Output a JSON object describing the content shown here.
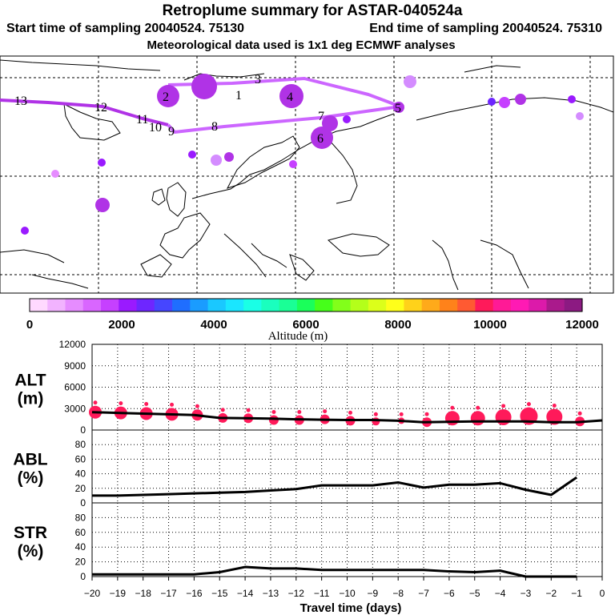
{
  "header": {
    "title": "Retroplume summary for ASTAR-040524a",
    "start": "Start time of sampling 20040524. 75130",
    "end": "End time of sampling 20040524. 75310",
    "met": "Meteorological data used is 1x1 deg ECMWF analyses"
  },
  "colorbar": {
    "label": "Altitude (m)",
    "ticks": [
      "0",
      "2000",
      "4000",
      "6000",
      "8000",
      "10000",
      "12000"
    ],
    "colors": [
      "#ffd9ff",
      "#f2b3ff",
      "#e68cff",
      "#d966ff",
      "#c640ff",
      "#9a1aff",
      "#6e26ff",
      "#4646ff",
      "#1f6eff",
      "#1a9cff",
      "#1ac8ff",
      "#1ae6ff",
      "#1affe6",
      "#1affbe",
      "#1aff96",
      "#1aff5a",
      "#46ff1a",
      "#82ff1a",
      "#b4ff1a",
      "#dcff1a",
      "#ffff1a",
      "#ffd21a",
      "#ffaa1a",
      "#ff821a",
      "#ff5a32",
      "#ff1a5a",
      "#ff1a96",
      "#ff1ab4",
      "#dc1aaa",
      "#aa1a8c",
      "#8c1a82"
    ]
  },
  "map": {
    "plume_labels": [
      "13",
      "12",
      "11",
      "10",
      "9",
      "8",
      "7",
      "6",
      "5",
      "4",
      "3",
      "2",
      "1"
    ]
  },
  "chart_data": [
    {
      "type": "line",
      "name": "ALT",
      "ylabel_line1": "ALT",
      "ylabel_line2": "(m)",
      "ylim": [
        0,
        12000
      ],
      "yticks": [
        "0",
        "3000",
        "6000",
        "9000",
        "12000"
      ],
      "x": [
        -20,
        -19,
        -18,
        -17,
        -16,
        -15,
        -14,
        -13,
        -12,
        -11,
        -10,
        -9,
        -8,
        -7,
        -6,
        -5,
        -4,
        -3,
        -2,
        -1,
        0
      ],
      "values": [
        2500,
        2400,
        2300,
        2200,
        2100,
        1700,
        1650,
        1600,
        1500,
        1450,
        1400,
        1400,
        1300,
        1100,
        1150,
        1200,
        1200,
        1200,
        1100,
        1100,
        1350
      ],
      "dots": [
        {
          "x": -20,
          "y": 2500,
          "r": 8
        },
        {
          "x": -19,
          "y": 2400,
          "r": 8
        },
        {
          "x": -18,
          "y": 2300,
          "r": 8
        },
        {
          "x": -17,
          "y": 2200,
          "r": 8
        },
        {
          "x": -16,
          "y": 2100,
          "r": 7
        },
        {
          "x": -15,
          "y": 1700,
          "r": 6
        },
        {
          "x": -14,
          "y": 1650,
          "r": 6
        },
        {
          "x": -13,
          "y": 1400,
          "r": 6
        },
        {
          "x": -12,
          "y": 1400,
          "r": 6
        },
        {
          "x": -11,
          "y": 1500,
          "r": 6
        },
        {
          "x": -10,
          "y": 1300,
          "r": 6
        },
        {
          "x": -9,
          "y": 1200,
          "r": 5
        },
        {
          "x": -8,
          "y": 1300,
          "r": 4
        },
        {
          "x": -7,
          "y": 1100,
          "r": 6
        },
        {
          "x": -6,
          "y": 1650,
          "r": 9
        },
        {
          "x": -5,
          "y": 1650,
          "r": 9
        },
        {
          "x": -4,
          "y": 1800,
          "r": 10
        },
        {
          "x": -3,
          "y": 1950,
          "r": 11
        },
        {
          "x": -2,
          "y": 1850,
          "r": 10
        },
        {
          "x": -1,
          "y": 1200,
          "r": 6
        }
      ]
    },
    {
      "type": "line",
      "name": "ABL",
      "ylabel_line1": "ABL",
      "ylabel_line2": "(%)",
      "ylim": [
        0,
        100
      ],
      "yticks": [
        "0",
        "20",
        "40",
        "60",
        "80"
      ],
      "x": [
        -20,
        -19,
        -18,
        -17,
        -16,
        -15,
        -14,
        -13,
        -12,
        -11,
        -10,
        -9,
        -8,
        -7,
        -6,
        -5,
        -4,
        -3,
        -2,
        -1
      ],
      "values": [
        10,
        10,
        11,
        12,
        13,
        14,
        15,
        17,
        19,
        24,
        24,
        24,
        28,
        21,
        25,
        25,
        27,
        18,
        11,
        35
      ]
    },
    {
      "type": "line",
      "name": "STR",
      "ylabel_line1": "STR",
      "ylabel_line2": "(%)",
      "ylim": [
        0,
        100
      ],
      "yticks": [
        "0",
        "20",
        "40",
        "60",
        "80"
      ],
      "x": [
        -20,
        -19,
        -18,
        -17,
        -16,
        -15,
        -14,
        -13,
        -12,
        -11,
        -10,
        -9,
        -8,
        -7,
        -6,
        -5,
        -4,
        -3,
        -2,
        -1
      ],
      "values": [
        3,
        3,
        3,
        3,
        3,
        6,
        13,
        11,
        11,
        9,
        9,
        9,
        9,
        9,
        7,
        6,
        8,
        0,
        0,
        0
      ]
    }
  ],
  "xaxis": {
    "label": "Travel time (days)",
    "ticks": [
      "−20",
      "−19",
      "−18",
      "−17",
      "−16",
      "−15",
      "−14",
      "−13",
      "−12",
      "−11",
      "−10",
      "−9",
      "−8",
      "−7",
      "−6",
      "−5",
      "−4",
      "−3",
      "−2",
      "−1",
      "0"
    ]
  }
}
